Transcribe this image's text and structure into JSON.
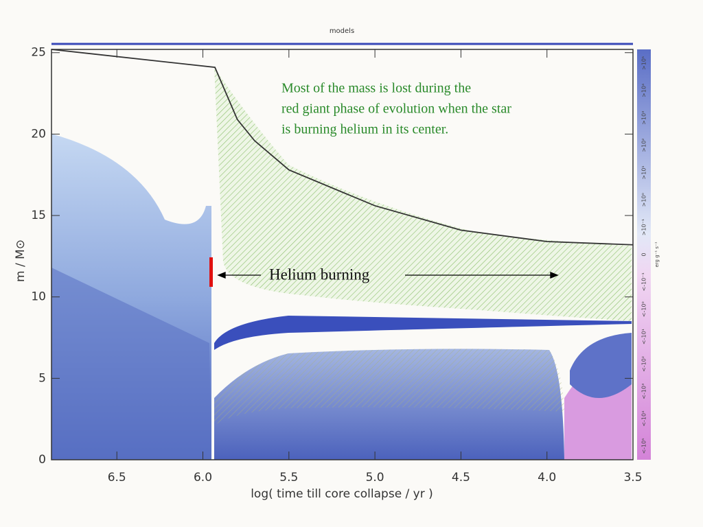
{
  "chart_data": {
    "type": "line",
    "top_label": "models",
    "x_label": "log( time till core collapse / yr )",
    "y_label": "m / M⊙",
    "annotation": [
      "Most of the mass is lost during the",
      "red giant phase of evolution when the star",
      "is burning helium in its center."
    ],
    "arrow_label": "Helium burning",
    "colorbar_labels": [
      "<-10⁵",
      "<-10⁴",
      "<-10³",
      "<-10²",
      "<-10¹",
      "<-10⁰",
      "<-10⁻¹",
      "0",
      ">10⁻¹",
      ">10⁰",
      ">10¹",
      ">10²",
      ">10³",
      ">10⁴",
      ">10⁵"
    ],
    "colorbar_unit": "erg g⁻¹ s⁻¹",
    "xlim": [
      6.88,
      3.5
    ],
    "ylim": [
      0,
      25.2
    ],
    "xticks": [
      6.5,
      {
        "value": 6,
        "label": "6.0"
      },
      5.5,
      {
        "value": 5,
        "label": "5.0"
      },
      4.5,
      {
        "value": 4,
        "label": "4.0"
      },
      3.5
    ],
    "yticks": [
      0,
      5,
      10,
      15,
      20,
      25
    ],
    "series": [
      {
        "color": "#333333",
        "x": [
          6.88,
          5.93,
          5.8,
          5.7,
          5.5,
          5.0,
          4.5,
          4.0,
          3.5
        ],
        "values": [
          25.2,
          24.1,
          20.9,
          19.6,
          17.8,
          15.6,
          14.1,
          13.4,
          13.2
        ]
      }
    ]
  }
}
